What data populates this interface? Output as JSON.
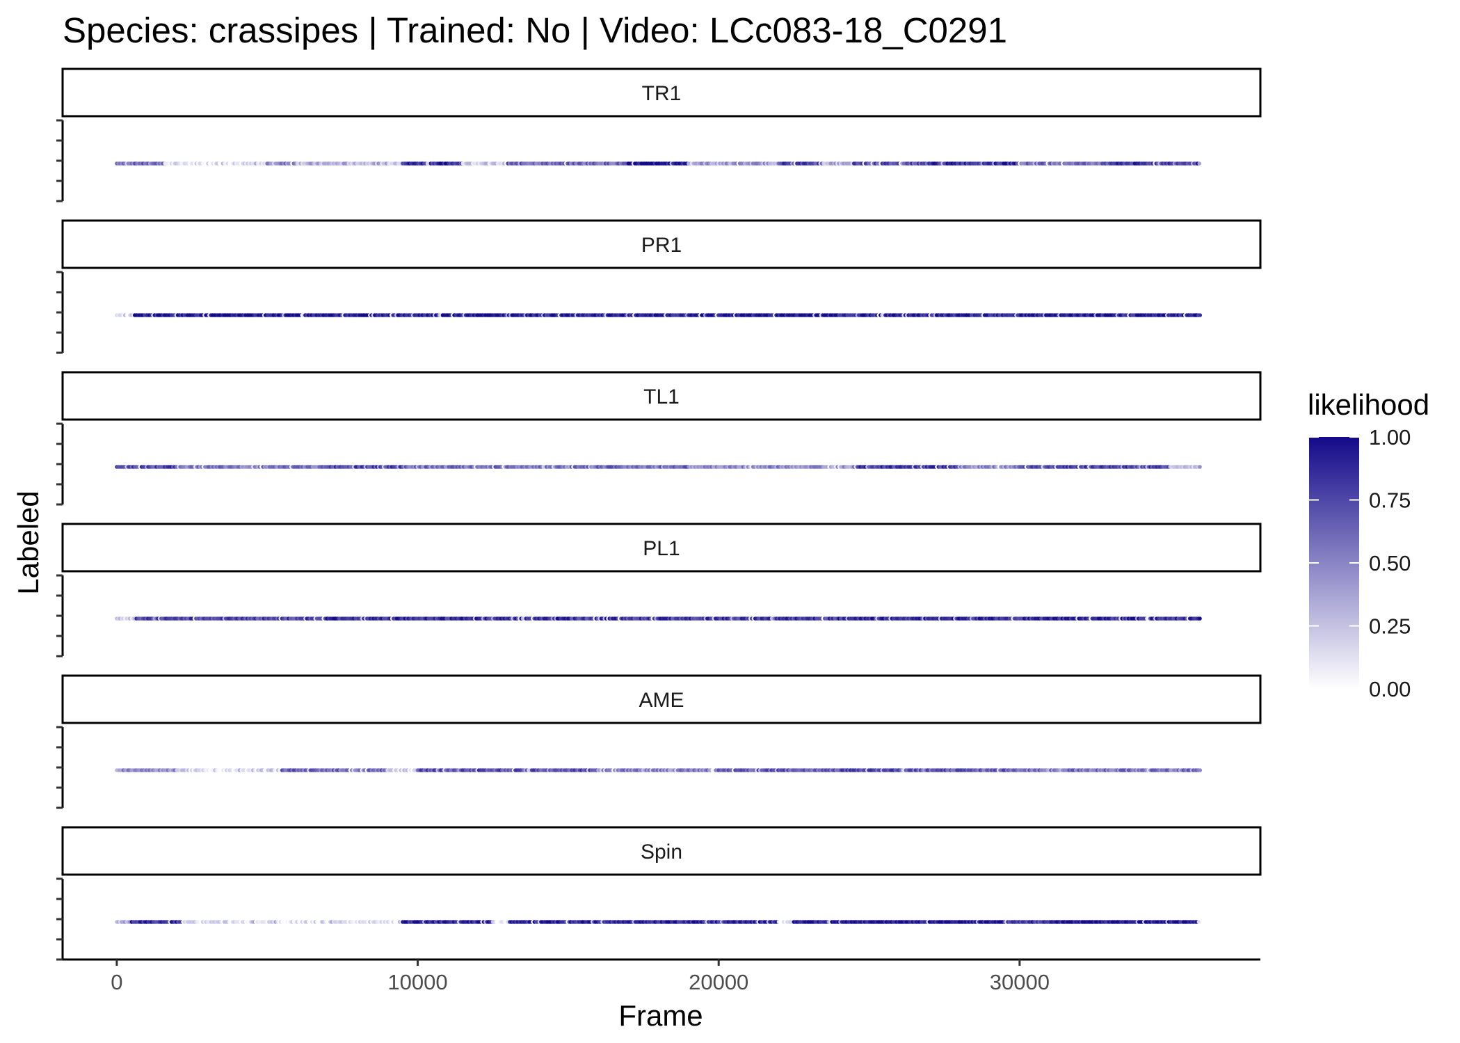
{
  "chart_data": {
    "type": "scatter",
    "title": "Species: crassipes | Trained: No | Video: LCc083-18_C0291",
    "xlabel": "Frame",
    "ylabel": "Labeled",
    "xlim": [
      -1800,
      38000
    ],
    "x_ticks": [
      0,
      10000,
      20000,
      30000
    ],
    "x_tick_labels": [
      "0",
      "10000",
      "20000",
      "30000"
    ],
    "frame_range": [
      0,
      36000
    ],
    "grid": false,
    "legend": {
      "title": "likelihood",
      "position": "right",
      "type": "continuous",
      "breaks": [
        1.0,
        0.75,
        0.5,
        0.25,
        0.0
      ],
      "labels": [
        "1.00",
        "0.75",
        "0.50",
        "0.25",
        "0.00"
      ],
      "color_low": "#ffffff",
      "color_high": "#140a8a"
    },
    "panels": [
      {
        "label": "TR1",
        "segments": [
          {
            "start": 0,
            "end": 1600,
            "likelihood": 0.6
          },
          {
            "start": 1600,
            "end": 5000,
            "likelihood": 0.1
          },
          {
            "start": 5000,
            "end": 6000,
            "likelihood": 0.5
          },
          {
            "start": 6000,
            "end": 9500,
            "likelihood": 0.3
          },
          {
            "start": 9500,
            "end": 11500,
            "likelihood": 0.85
          },
          {
            "start": 11500,
            "end": 13000,
            "likelihood": 0.2
          },
          {
            "start": 13000,
            "end": 17000,
            "likelihood": 0.6
          },
          {
            "start": 17000,
            "end": 19000,
            "likelihood": 0.95
          },
          {
            "start": 19000,
            "end": 22000,
            "likelihood": 0.4
          },
          {
            "start": 22000,
            "end": 23500,
            "likelihood": 0.75
          },
          {
            "start": 23500,
            "end": 24500,
            "likelihood": 0.3
          },
          {
            "start": 24500,
            "end": 27000,
            "likelihood": 0.7
          },
          {
            "start": 27000,
            "end": 30000,
            "likelihood": 0.85
          },
          {
            "start": 30000,
            "end": 33000,
            "likelihood": 0.6
          },
          {
            "start": 33000,
            "end": 36000,
            "likelihood": 0.8
          }
        ]
      },
      {
        "label": "PR1",
        "segments": [
          {
            "start": 0,
            "end": 600,
            "likelihood": 0.15
          },
          {
            "start": 600,
            "end": 14000,
            "likelihood": 0.95
          },
          {
            "start": 14000,
            "end": 19000,
            "likelihood": 0.9
          },
          {
            "start": 19000,
            "end": 24000,
            "likelihood": 0.95
          },
          {
            "start": 24000,
            "end": 30000,
            "likelihood": 0.9
          },
          {
            "start": 30000,
            "end": 36000,
            "likelihood": 0.9
          }
        ]
      },
      {
        "label": "TL1",
        "segments": [
          {
            "start": 0,
            "end": 2000,
            "likelihood": 0.75
          },
          {
            "start": 2000,
            "end": 7000,
            "likelihood": 0.55
          },
          {
            "start": 7000,
            "end": 9500,
            "likelihood": 0.75
          },
          {
            "start": 9500,
            "end": 16000,
            "likelihood": 0.55
          },
          {
            "start": 16000,
            "end": 19000,
            "likelihood": 0.6
          },
          {
            "start": 19000,
            "end": 24500,
            "likelihood": 0.45
          },
          {
            "start": 24500,
            "end": 28000,
            "likelihood": 0.8
          },
          {
            "start": 28000,
            "end": 30000,
            "likelihood": 0.45
          },
          {
            "start": 30000,
            "end": 35000,
            "likelihood": 0.75
          },
          {
            "start": 35000,
            "end": 36000,
            "likelihood": 0.3
          }
        ]
      },
      {
        "label": "PL1",
        "segments": [
          {
            "start": 0,
            "end": 600,
            "likelihood": 0.2
          },
          {
            "start": 600,
            "end": 7000,
            "likelihood": 0.75
          },
          {
            "start": 7000,
            "end": 15000,
            "likelihood": 0.85
          },
          {
            "start": 15000,
            "end": 24000,
            "likelihood": 0.8
          },
          {
            "start": 24000,
            "end": 36000,
            "likelihood": 0.85
          }
        ]
      },
      {
        "label": "AME",
        "segments": [
          {
            "start": 0,
            "end": 2000,
            "likelihood": 0.45
          },
          {
            "start": 2000,
            "end": 5500,
            "likelihood": 0.15
          },
          {
            "start": 5500,
            "end": 9000,
            "likelihood": 0.6
          },
          {
            "start": 9000,
            "end": 10000,
            "likelihood": 0.15
          },
          {
            "start": 10000,
            "end": 16000,
            "likelihood": 0.7
          },
          {
            "start": 16000,
            "end": 20000,
            "likelihood": 0.5
          },
          {
            "start": 20000,
            "end": 24000,
            "likelihood": 0.65
          },
          {
            "start": 24000,
            "end": 26000,
            "likelihood": 0.7
          },
          {
            "start": 26000,
            "end": 30000,
            "likelihood": 0.65
          },
          {
            "start": 30000,
            "end": 36000,
            "likelihood": 0.55
          }
        ]
      },
      {
        "label": "Spin",
        "segments": [
          {
            "start": 0,
            "end": 500,
            "likelihood": 0.3
          },
          {
            "start": 500,
            "end": 2200,
            "likelihood": 0.85
          },
          {
            "start": 2200,
            "end": 9500,
            "likelihood": 0.1
          },
          {
            "start": 9500,
            "end": 12500,
            "likelihood": 0.9
          },
          {
            "start": 12500,
            "end": 13000,
            "likelihood": 0.1
          },
          {
            "start": 13000,
            "end": 19500,
            "likelihood": 0.9
          },
          {
            "start": 19500,
            "end": 22000,
            "likelihood": 0.85
          },
          {
            "start": 22000,
            "end": 22500,
            "likelihood": 0.1
          },
          {
            "start": 22500,
            "end": 29500,
            "likelihood": 0.95
          },
          {
            "start": 29500,
            "end": 31000,
            "likelihood": 0.8
          },
          {
            "start": 31000,
            "end": 36000,
            "likelihood": 0.95
          }
        ]
      }
    ]
  }
}
